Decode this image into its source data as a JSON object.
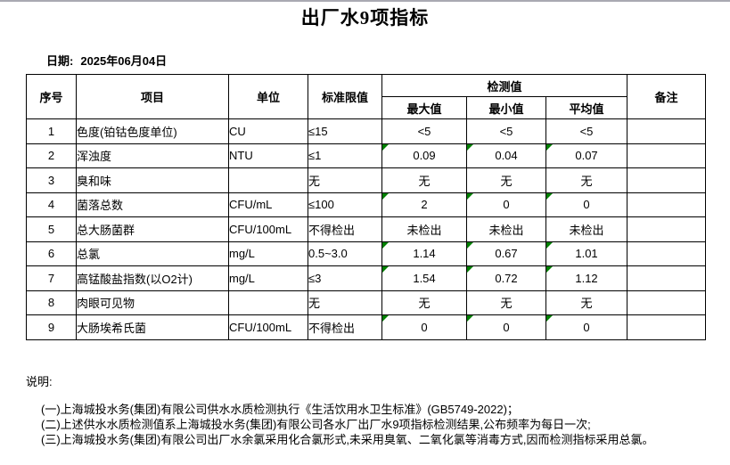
{
  "title": "出厂水9项指标",
  "date": {
    "label": "日期:",
    "value": "2025年06月04日"
  },
  "colors": {
    "flag_green": "#008000",
    "top_bar": "#a9a9b2",
    "border": "#000000"
  },
  "table": {
    "headers": {
      "no": "序号",
      "item": "项目",
      "unit": "单位",
      "limit": "标准限值",
      "detection": "检测值",
      "max": "最大值",
      "min": "最小值",
      "avg": "平均值",
      "remark": "备注"
    },
    "rows": [
      {
        "no": "1",
        "item": "色度(铂钴色度单位)",
        "unit": "CU",
        "limit": "≤15",
        "max": "<5",
        "min": "<5",
        "avg": "<5",
        "remark": "",
        "flagged": false
      },
      {
        "no": "2",
        "item": "浑浊度",
        "unit": "NTU",
        "limit": "≤1",
        "max": "0.09",
        "min": "0.04",
        "avg": "0.07",
        "remark": "",
        "flagged": true
      },
      {
        "no": "3",
        "item": "臭和味",
        "unit": "",
        "limit": "无",
        "max": "无",
        "min": "无",
        "avg": "无",
        "remark": "",
        "flagged": false
      },
      {
        "no": "4",
        "item": "菌落总数",
        "unit": "CFU/mL",
        "limit": "≤100",
        "max": "2",
        "min": "0",
        "avg": "0",
        "remark": "",
        "flagged": true
      },
      {
        "no": "5",
        "item": "总大肠菌群",
        "unit": "CFU/100mL",
        "limit": "不得检出",
        "max": "未检出",
        "min": "未检出",
        "avg": "未检出",
        "remark": "",
        "flagged": false
      },
      {
        "no": "6",
        "item": "总氯",
        "unit": "mg/L",
        "limit": "0.5~3.0",
        "max": "1.14",
        "min": "0.67",
        "avg": "1.01",
        "remark": "",
        "flagged": true
      },
      {
        "no": "7",
        "item": "高锰酸盐指数(以O2计)",
        "unit": "mg/L",
        "limit": "≤3",
        "max": "1.54",
        "min": "0.72",
        "avg": "1.12",
        "remark": "",
        "flagged": true
      },
      {
        "no": "8",
        "item": "肉眼可见物",
        "unit": "",
        "limit": "无",
        "max": "无",
        "min": "无",
        "avg": "无",
        "remark": "",
        "flagged": false
      },
      {
        "no": "9",
        "item": "大肠埃希氏菌",
        "unit": "CFU/100mL",
        "limit": "不得检出",
        "max": "0",
        "min": "0",
        "avg": "0",
        "remark": "",
        "flagged": true
      }
    ]
  },
  "notes": {
    "label": "说明:",
    "lines": [
      "(一)上海城投水务(集团)有限公司供水水质检测执行《生活饮用水卫生标准》(GB5749-2022)；",
      "(二)上述供水水质检测值系上海城投水务(集团)有限公司各水厂出厂水9项指标检测结果,公布频率为每日一次;",
      "(三)上海城投水务(集团)有限公司出厂水余氯采用化合氯形式,未采用臭氧、二氧化氯等消毒方式,因而检测指标采用总氯。"
    ]
  }
}
